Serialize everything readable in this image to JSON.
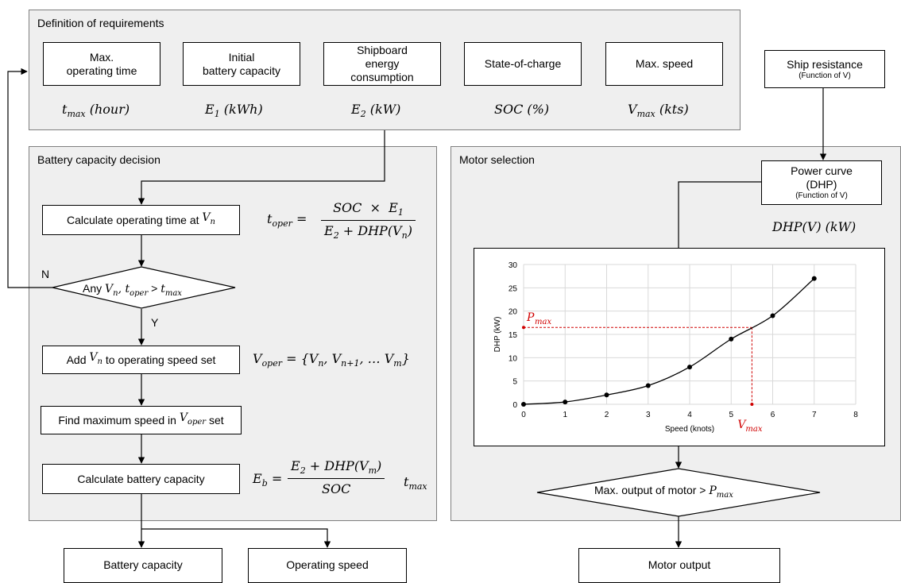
{
  "requirements": {
    "title": "Definition of requirements",
    "items": [
      {
        "label": "Max.\noperating time",
        "symbol": "t",
        "sub": "max",
        "unit": "(hour)"
      },
      {
        "label": "Initial\nbattery capacity",
        "symbol": "E",
        "sub": "1",
        "unit": "(kWh)"
      },
      {
        "label": "Shipboard\nenergy\nconsumption",
        "symbol": "E",
        "sub": "2",
        "unit": "(kW)"
      },
      {
        "label": "State-of-charge",
        "symbol": "SOC",
        "sub": "",
        "unit": "(%)"
      },
      {
        "label": "Max. speed",
        "symbol": "V",
        "sub": "max",
        "unit": "(kts)"
      }
    ]
  },
  "ship_resistance": {
    "label": "Ship resistance",
    "sub_label": "(Function of V)"
  },
  "battery_panel": {
    "title": "Battery capacity decision",
    "calc_time": "Calculate operating time at",
    "decision": "Any",
    "decision_no": "N",
    "decision_yes": "Y",
    "add_speed": "Add",
    "add_speed_rest": "to operating speed set",
    "find_max": "Find maximum speed in",
    "find_max_rest": "set",
    "calc_capacity": "Calculate battery capacity"
  },
  "motor_panel": {
    "title": "Motor selection",
    "power_curve": "Power curve\n(DHP)",
    "power_curve_sub": "(Function of V)",
    "dhp_label": "DHP(V) (kW)",
    "decision": "Max. output of motor >"
  },
  "outputs": {
    "battery_capacity": "Battery capacity",
    "operating_speed": "Operating speed",
    "motor_output": "Motor output"
  },
  "chart_data": {
    "type": "line",
    "x": [
      0,
      1,
      2,
      3,
      4,
      5,
      6,
      7
    ],
    "values": [
      0,
      0.5,
      2,
      4,
      8,
      14,
      19,
      27
    ],
    "xlabel": "Speed (knots)",
    "ylabel": "DHP (kW)",
    "xlim": [
      0,
      8
    ],
    "ylim": [
      0,
      30
    ],
    "xticks": [
      0,
      1,
      2,
      3,
      4,
      5,
      6,
      7,
      8
    ],
    "yticks": [
      0,
      5,
      10,
      15,
      20,
      25,
      30
    ],
    "grid": true,
    "annotations": {
      "p_label": "P",
      "p_sub": "max",
      "v_label": "V",
      "v_sub": "max",
      "v_max": 5.5,
      "p_max": 16.5
    },
    "colors": {
      "line": "#000000",
      "marker": "#000000",
      "annotation": "#d00000",
      "grid": "#d9d9d9"
    }
  }
}
